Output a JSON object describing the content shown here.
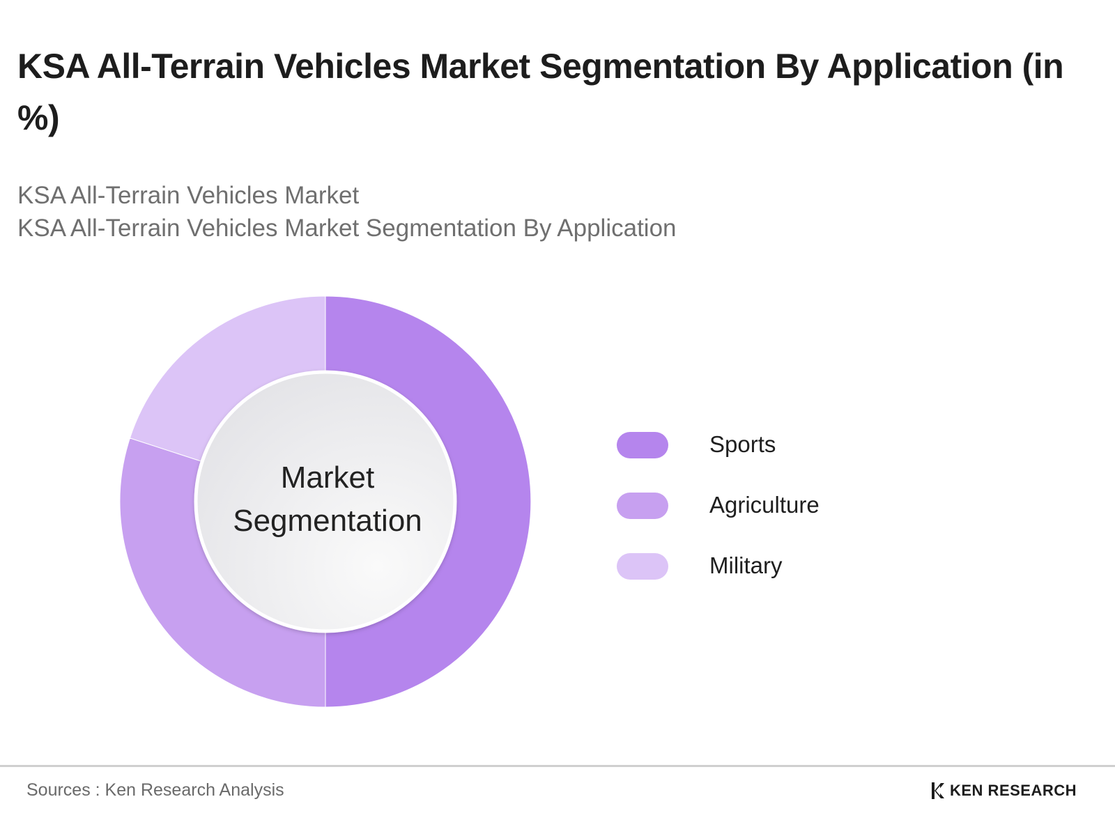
{
  "header": {
    "title": "KSA All-Terrain Vehicles Market Segmentation By Application (in %)",
    "subtitle_line1": "KSA All-Terrain Vehicles Market",
    "subtitle_line2": "KSA All-Terrain Vehicles Market Segmentation By Application"
  },
  "chart_data": {
    "type": "pie",
    "variant": "donut",
    "title": "KSA All-Terrain Vehicles Market Segmentation By Application (in %)",
    "center_label_line1": "Market",
    "center_label_line2": "Segmentation",
    "categories": [
      "Sports",
      "Agriculture",
      "Military"
    ],
    "values": [
      50,
      30,
      20
    ],
    "colors": [
      "#b585ed",
      "#c7a0f0",
      "#dcc4f7"
    ],
    "legend_position": "right"
  },
  "footer": {
    "source": "Sources : Ken Research Analysis",
    "logo_text": "KEN RESEARCH",
    "logo_icon": "ken-research-k-logo-icon"
  }
}
